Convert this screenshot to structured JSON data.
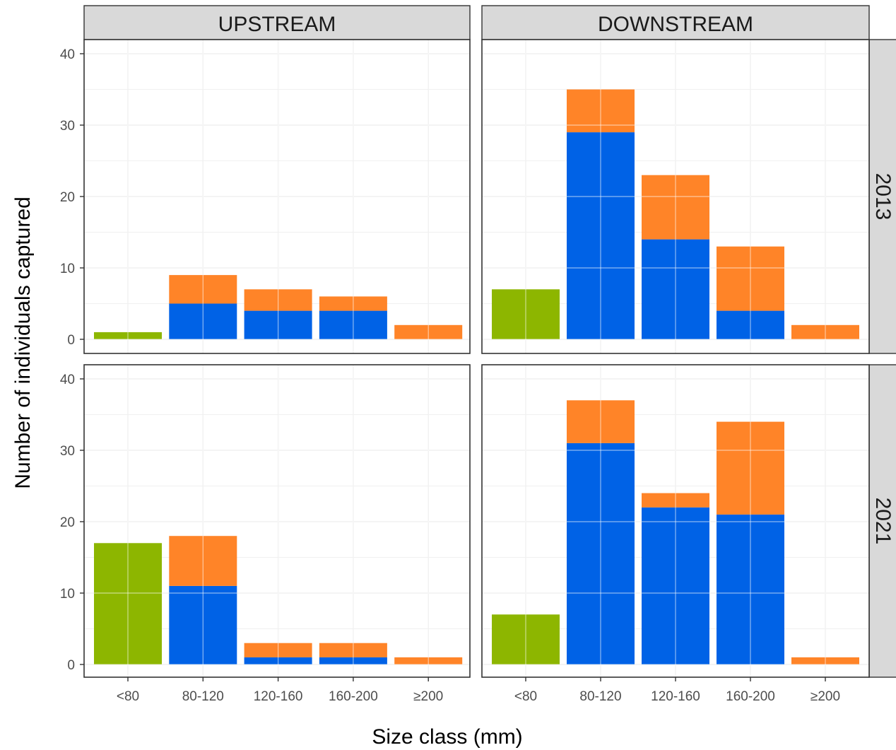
{
  "chart_data": {
    "type": "bar",
    "stacked": true,
    "facets": {
      "columns": [
        "UPSTREAM",
        "DOWNSTREAM"
      ],
      "rows": [
        "2013",
        "2021"
      ]
    },
    "xlabel": "Size class (mm)",
    "ylabel": "Number of individuals captured",
    "categories": [
      "<80",
      "80-120",
      "120-160",
      "160-200",
      "≥200"
    ],
    "ylim": [
      0,
      40
    ],
    "yticks": [
      0,
      10,
      20,
      30,
      40
    ],
    "grid": true,
    "series_colors": [
      "#8db600",
      "#0062e6",
      "#ff8428"
    ],
    "panels": [
      {
        "column": "UPSTREAM",
        "row": "2013",
        "series": [
          {
            "values": [
              1,
              0,
              0,
              0,
              0
            ]
          },
          {
            "values": [
              0,
              5,
              4,
              4,
              0
            ]
          },
          {
            "values": [
              0,
              4,
              3,
              2,
              2
            ]
          }
        ]
      },
      {
        "column": "DOWNSTREAM",
        "row": "2013",
        "series": [
          {
            "values": [
              7,
              0,
              0,
              0,
              0
            ]
          },
          {
            "values": [
              0,
              29,
              14,
              4,
              0
            ]
          },
          {
            "values": [
              0,
              6,
              9,
              9,
              2
            ]
          }
        ]
      },
      {
        "column": "UPSTREAM",
        "row": "2021",
        "series": [
          {
            "values": [
              17,
              0,
              0,
              0,
              0
            ]
          },
          {
            "values": [
              0,
              11,
              1,
              1,
              0
            ]
          },
          {
            "values": [
              0,
              7,
              2,
              2,
              1
            ]
          }
        ]
      },
      {
        "column": "DOWNSTREAM",
        "row": "2021",
        "series": [
          {
            "values": [
              7,
              0,
              0,
              0,
              0
            ]
          },
          {
            "values": [
              0,
              31,
              22,
              21,
              0
            ]
          },
          {
            "values": [
              0,
              6,
              2,
              13,
              1
            ]
          }
        ]
      }
    ]
  }
}
